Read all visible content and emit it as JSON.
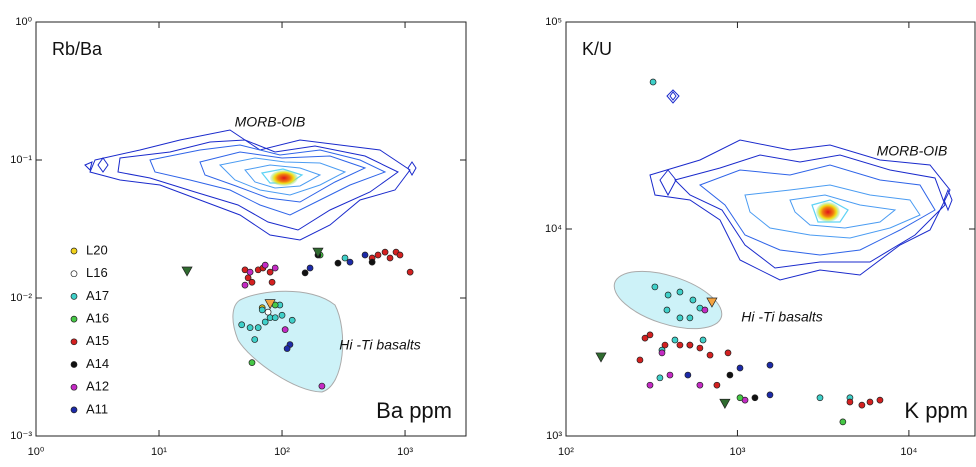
{
  "chart_data": [
    {
      "type": "scatter",
      "ylabel": "Rb/Ba",
      "xlabel": "Ba ppm",
      "annotations": [
        "MORB-OIB",
        "Hi -Ti basalts"
      ],
      "xscale": "log",
      "yscale": "log",
      "xlim": [
        1,
        3130
      ],
      "ylim": [
        0.001,
        1
      ],
      "xticks": [
        {
          "value": 1,
          "label": "10⁰"
        },
        {
          "value": 10,
          "label": "10¹"
        },
        {
          "value": 100,
          "label": "10²"
        },
        {
          "value": 1000,
          "label": "10³"
        }
      ],
      "yticks": [
        {
          "value": 0.001,
          "label": "10⁻³"
        },
        {
          "value": 0.01,
          "label": "10⁻²"
        },
        {
          "value": 0.1,
          "label": "10⁻¹"
        },
        {
          "value": 1,
          "label": "10⁰"
        }
      ],
      "legend": true,
      "series": [
        {
          "name": "L20",
          "color": "#f2d21b",
          "x": [
            69
          ],
          "values": [
            0.0085
          ]
        },
        {
          "name": "L16",
          "color": "#ffffff",
          "x": [
            77
          ],
          "values": [
            0.0079
          ]
        },
        {
          "name": "A17",
          "color": "#3fd0c9",
          "x": [
            47,
            55,
            64,
            73,
            80,
            88,
            100,
            121,
            69,
            96,
            60,
            325
          ],
          "values": [
            0.0064,
            0.0061,
            0.0061,
            0.0067,
            0.0072,
            0.0072,
            0.0075,
            0.0069,
            0.0082,
            0.0089,
            0.005,
            0.0195
          ]
        },
        {
          "name": "A16",
          "color": "#46c846",
          "x": [
            57,
            204,
            88
          ],
          "values": [
            0.0034,
            0.0205,
            0.0089
          ]
        },
        {
          "name": "A15",
          "color": "#d42020",
          "x": [
            50,
            53,
            57,
            64,
            70,
            80,
            83,
            540,
            603,
            688,
            755,
            845,
            910,
            1100
          ],
          "values": [
            0.016,
            0.014,
            0.013,
            0.016,
            0.0165,
            0.0154,
            0.013,
            0.0195,
            0.0205,
            0.0215,
            0.0195,
            0.0215,
            0.0205,
            0.0154
          ]
        },
        {
          "name": "A14",
          "color": "#111111",
          "x": [
            154,
            285,
            196,
            540
          ],
          "values": [
            0.0152,
            0.0179,
            0.0205,
            0.0182
          ]
        },
        {
          "name": "A12",
          "color": "#c42ac4",
          "x": [
            50,
            73,
            88,
            211,
            106,
            55
          ],
          "values": [
            0.0124,
            0.0173,
            0.0165,
            0.0023,
            0.0059,
            0.0154
          ]
        },
        {
          "name": "A11",
          "color": "#1c2aa8",
          "x": [
            116,
            110,
            169,
            357,
            473
          ],
          "values": [
            0.0046,
            0.0043,
            0.0165,
            0.0182,
            0.0205
          ]
        },
        {
          "color": "#2f6b2f",
          "marker": "triangle-down",
          "x": [
            16.9,
            196
          ],
          "values": [
            0.0157,
            0.0215
          ]
        },
        {
          "color": "#f4a340",
          "marker": "triangle-down",
          "x": [
            80
          ],
          "values": [
            0.0091
          ]
        }
      ]
    },
    {
      "type": "scatter",
      "ylabel": "K/U",
      "xlabel": "K ppm",
      "annotations": [
        "MORB-OIB",
        "Hi -Ti basalts"
      ],
      "xscale": "log",
      "yscale": "log",
      "xlim": [
        100,
        24300
      ],
      "ylim": [
        1000,
        100000
      ],
      "xticks": [
        {
          "value": 100,
          "label": "10²"
        },
        {
          "value": 1000,
          "label": "10³"
        },
        {
          "value": 10000,
          "label": "10⁴"
        }
      ],
      "yticks": [
        {
          "value": 1000,
          "label": "10³"
        },
        {
          "value": 10000,
          "label": "10⁴"
        },
        {
          "value": 100000,
          "label": "10⁵"
        }
      ],
      "legend": false,
      "series": [
        {
          "color": "#3fd0c9",
          "x": [
            322,
            330,
            394,
            462,
            550,
            604,
            388,
            462,
            528,
            363,
            528,
            630,
            432,
            353,
            3030,
            4530
          ],
          "values": [
            51300,
            5250,
            4800,
            4960,
            4540,
            4150,
            4060,
            3720,
            3720,
            2600,
            2750,
            2910,
            2910,
            1910,
            1530,
            1530
          ]
        },
        {
          "color": "#d42020",
          "x": [
            289,
            309,
            378,
            462,
            528,
            604,
            692,
            881,
            270,
            759,
            4530,
            5320,
            5930,
            6780
          ],
          "values": [
            2970,
            3080,
            2750,
            2750,
            2750,
            2660,
            2460,
            2520,
            2330,
            1760,
            1460,
            1410,
            1460,
            1490
          ]
        },
        {
          "color": "#c42ac4",
          "x": [
            646,
            309,
            604,
            404,
            1107,
            363
          ],
          "values": [
            4060,
            1760,
            1760,
            1970,
            1490,
            2520
          ]
        },
        {
          "color": "#1c2aa8",
          "x": [
            514,
            1035,
            1548,
            1548
          ],
          "values": [
            1970,
            2130,
            2200,
            1580
          ]
        },
        {
          "color": "#111111",
          "x": [
            904,
            1265
          ],
          "values": [
            1970,
            1530
          ]
        },
        {
          "color": "#46c846",
          "x": [
            1035,
            4120
          ],
          "values": [
            1530,
            1170
          ]
        },
        {
          "color": "#2f6b2f",
          "marker": "triangle-down",
          "x": [
            160,
            845
          ],
          "values": [
            2410,
            1440
          ]
        },
        {
          "color": "#f4a340",
          "marker": "triangle-down",
          "x": [
            710
          ],
          "values": [
            4440
          ]
        }
      ]
    }
  ]
}
